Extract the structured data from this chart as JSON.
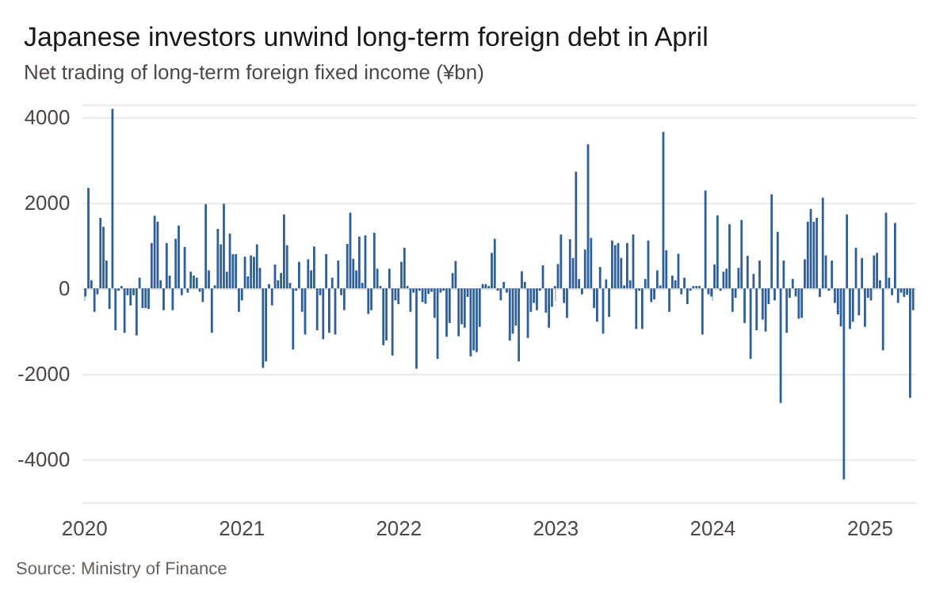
{
  "chart_data": {
    "type": "bar",
    "title": "Japanese investors unwind long-term foreign debt in April",
    "subtitle": "Net trading of long-term foreign fixed income (¥bn)",
    "annotations": [
      "Source: Ministry of Finance"
    ],
    "x": [
      "2020-01-03",
      "2020-01-10",
      "2020-01-17",
      "2020-01-24",
      "2020-01-31",
      "2020-02-07",
      "2020-02-14",
      "2020-02-21",
      "2020-02-28",
      "2020-03-06",
      "2020-03-13",
      "2020-03-20",
      "2020-03-27",
      "2020-04-03",
      "2020-04-10",
      "2020-04-17",
      "2020-04-24",
      "2020-05-01",
      "2020-05-08",
      "2020-05-15",
      "2020-05-22",
      "2020-05-29",
      "2020-06-05",
      "2020-06-12",
      "2020-06-19",
      "2020-06-26",
      "2020-07-03",
      "2020-07-10",
      "2020-07-17",
      "2020-07-24",
      "2020-07-31",
      "2020-08-07",
      "2020-08-14",
      "2020-08-21",
      "2020-08-28",
      "2020-09-04",
      "2020-09-11",
      "2020-09-18",
      "2020-09-25",
      "2020-10-02",
      "2020-10-09",
      "2020-10-16",
      "2020-10-23",
      "2020-10-30",
      "2020-11-06",
      "2020-11-13",
      "2020-11-20",
      "2020-11-27",
      "2020-12-04",
      "2020-12-11",
      "2020-12-18",
      "2020-12-25",
      "2021-01-01",
      "2021-01-08",
      "2021-01-15",
      "2021-01-22",
      "2021-01-29",
      "2021-02-05",
      "2021-02-12",
      "2021-02-19",
      "2021-02-26",
      "2021-03-05",
      "2021-03-12",
      "2021-03-19",
      "2021-03-26",
      "2021-04-02",
      "2021-04-09",
      "2021-04-16",
      "2021-04-23",
      "2021-04-30",
      "2021-05-07",
      "2021-05-14",
      "2021-05-21",
      "2021-05-28",
      "2021-06-04",
      "2021-06-11",
      "2021-06-18",
      "2021-06-25",
      "2021-07-02",
      "2021-07-09",
      "2021-07-16",
      "2021-07-23",
      "2021-07-30",
      "2021-08-06",
      "2021-08-13",
      "2021-08-20",
      "2021-08-27",
      "2021-09-03",
      "2021-09-10",
      "2021-09-17",
      "2021-09-24",
      "2021-10-01",
      "2021-10-08",
      "2021-10-15",
      "2021-10-22",
      "2021-10-29",
      "2021-11-05",
      "2021-11-12",
      "2021-11-19",
      "2021-11-26",
      "2021-12-03",
      "2021-12-10",
      "2021-12-17",
      "2021-12-24",
      "2021-12-31",
      "2022-01-07",
      "2022-01-14",
      "2022-01-21",
      "2022-01-28",
      "2022-02-04",
      "2022-02-11",
      "2022-02-18",
      "2022-02-25",
      "2022-03-04",
      "2022-03-11",
      "2022-03-18",
      "2022-03-25",
      "2022-04-01",
      "2022-04-08",
      "2022-04-15",
      "2022-04-22",
      "2022-04-29",
      "2022-05-06",
      "2022-05-13",
      "2022-05-20",
      "2022-05-27",
      "2022-06-03",
      "2022-06-10",
      "2022-06-17",
      "2022-06-24",
      "2022-07-01",
      "2022-07-08",
      "2022-07-15",
      "2022-07-22",
      "2022-07-29",
      "2022-08-05",
      "2022-08-12",
      "2022-08-19",
      "2022-08-26",
      "2022-09-02",
      "2022-09-09",
      "2022-09-16",
      "2022-09-23",
      "2022-09-30",
      "2022-10-07",
      "2022-10-14",
      "2022-10-21",
      "2022-10-28",
      "2022-11-04",
      "2022-11-11",
      "2022-11-18",
      "2022-11-25",
      "2022-12-02",
      "2022-12-09",
      "2022-12-16",
      "2022-12-23",
      "2022-12-30",
      "2023-01-06",
      "2023-01-13",
      "2023-01-20",
      "2023-01-27",
      "2023-02-03",
      "2023-02-10",
      "2023-02-17",
      "2023-02-24",
      "2023-03-03",
      "2023-03-10",
      "2023-03-17",
      "2023-03-24",
      "2023-03-31",
      "2023-04-07",
      "2023-04-14",
      "2023-04-21",
      "2023-04-28",
      "2023-05-05",
      "2023-05-12",
      "2023-05-19",
      "2023-05-26",
      "2023-06-02",
      "2023-06-09",
      "2023-06-16",
      "2023-06-23",
      "2023-06-30",
      "2023-07-07",
      "2023-07-14",
      "2023-07-21",
      "2023-07-28",
      "2023-08-04",
      "2023-08-11",
      "2023-08-18",
      "2023-08-25",
      "2023-09-01",
      "2023-09-08",
      "2023-09-15",
      "2023-09-22",
      "2023-09-29",
      "2023-10-06",
      "2023-10-13",
      "2023-10-20",
      "2023-10-27",
      "2023-11-03",
      "2023-11-10",
      "2023-11-17",
      "2023-11-24",
      "2023-12-01",
      "2023-12-08",
      "2023-12-15",
      "2023-12-22",
      "2023-12-29",
      "2024-01-05",
      "2024-01-12",
      "2024-01-19",
      "2024-01-26",
      "2024-02-02",
      "2024-02-09",
      "2024-02-16",
      "2024-02-23",
      "2024-03-01",
      "2024-03-08",
      "2024-03-15",
      "2024-03-22",
      "2024-03-29",
      "2024-04-05",
      "2024-04-12",
      "2024-04-19",
      "2024-04-26",
      "2024-05-03",
      "2024-05-10",
      "2024-05-17",
      "2024-05-24",
      "2024-05-31",
      "2024-06-07",
      "2024-06-14",
      "2024-06-21",
      "2024-06-28",
      "2024-07-05",
      "2024-07-12",
      "2024-07-19",
      "2024-07-26",
      "2024-08-02",
      "2024-08-09",
      "2024-08-16",
      "2024-08-23",
      "2024-08-30",
      "2024-09-06",
      "2024-09-13",
      "2024-09-20",
      "2024-09-27",
      "2024-10-04",
      "2024-10-11",
      "2024-10-18",
      "2024-10-25",
      "2024-11-01",
      "2024-11-08",
      "2024-11-15",
      "2024-11-22",
      "2024-11-29",
      "2024-12-06",
      "2024-12-13",
      "2024-12-20",
      "2024-12-27",
      "2025-01-03",
      "2025-01-10",
      "2025-01-17",
      "2025-01-24",
      "2025-01-31",
      "2025-02-07",
      "2025-02-14",
      "2025-02-21",
      "2025-02-28",
      "2025-03-07",
      "2025-03-14",
      "2025-03-21",
      "2025-03-28",
      "2025-04-04",
      "2025-04-11"
    ],
    "values": [
      -190,
      2350,
      190,
      -550,
      -140,
      1650,
      1440,
      650,
      -480,
      4200,
      -980,
      -10,
      0,
      -1040,
      -160,
      -400,
      -160,
      -1100,
      250,
      -460,
      -460,
      -480,
      1060,
      1700,
      1560,
      190,
      -510,
      1060,
      300,
      -510,
      1160,
      1470,
      -160,
      970,
      -100,
      390,
      300,
      250,
      -80,
      -320,
      1970,
      420,
      -1040,
      70,
      1390,
      1030,
      1980,
      390,
      1280,
      800,
      800,
      -550,
      -280,
      740,
      280,
      770,
      740,
      1030,
      480,
      -1860,
      -1710,
      100,
      -400,
      560,
      190,
      360,
      1730,
      1010,
      130,
      -1430,
      -50,
      620,
      -550,
      -1080,
      680,
      420,
      980,
      -980,
      -160,
      -1190,
      800,
      -1040,
      250,
      -1080,
      650,
      -160,
      -510,
      1040,
      1770,
      690,
      420,
      1210,
      130,
      1240,
      -600,
      -510,
      1300,
      460,
      0,
      -1330,
      -1220,
      460,
      -1570,
      -280,
      -370,
      620,
      950,
      0,
      -550,
      -100,
      -1880,
      -50,
      -320,
      -360,
      -130,
      -80,
      -690,
      -1650,
      -100,
      -50,
      -1130,
      -810,
      360,
      640,
      -1120,
      -840,
      -920,
      -200,
      -1590,
      -1450,
      -1490,
      -900,
      100,
      100,
      50,
      830,
      1160,
      -50,
      -280,
      150,
      -100,
      -1220,
      -1060,
      -870,
      -1710,
      400,
      150,
      -1160,
      -550,
      -340,
      -510,
      -50,
      540,
      -570,
      -920,
      -430,
      30,
      570,
      1260,
      -340,
      -690,
      1150,
      710,
      2730,
      220,
      -140,
      910,
      3370,
      1180,
      -460,
      -780,
      500,
      -1060,
      210,
      -670,
      1120,
      1010,
      1060,
      710,
      70,
      1060,
      190,
      1260,
      -950,
      -30,
      -950,
      220,
      1120,
      -320,
      -260,
      420,
      70,
      3660,
      890,
      -550,
      300,
      190,
      810,
      -140,
      250,
      -370,
      -50,
      0,
      30,
      50,
      -1080,
      2290,
      -140,
      -190,
      560,
      1710,
      -40,
      390,
      460,
      1500,
      -550,
      -220,
      480,
      1600,
      -810,
      760,
      -1650,
      340,
      -980,
      650,
      -730,
      -1010,
      -370,
      2200,
      -280,
      1320,
      -2680,
      650,
      -1040,
      -220,
      220,
      -190,
      -710,
      -690,
      680,
      1560,
      1860,
      1560,
      1650,
      -200,
      2120,
      770,
      -50,
      650,
      -340,
      -610,
      -890,
      -4470,
      1730,
      -950,
      -780,
      950,
      -630,
      710,
      -900,
      -220,
      -280,
      770,
      830,
      190,
      -1450,
      1770,
      250,
      -160,
      1530,
      -340,
      -100,
      -200,
      -150,
      -2560,
      -510
    ],
    "color": "#2f5f98",
    "xlim": [
      "2019-12-28",
      "2025-04-18"
    ],
    "xticks": [
      "2020",
      "2021",
      "2022",
      "2023",
      "2024",
      "2025"
    ],
    "ylim": [
      -5000,
      4300
    ],
    "yticks": [
      -4000,
      -2000,
      0,
      2000,
      4000
    ],
    "grid": "y"
  }
}
